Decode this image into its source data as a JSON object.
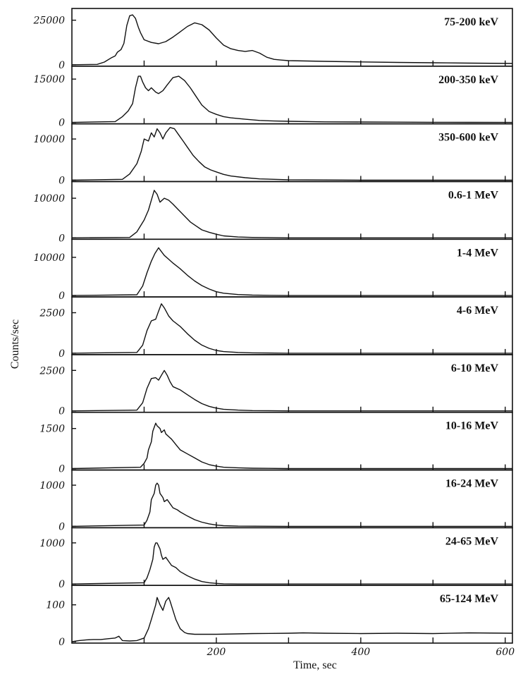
{
  "chart_data": {
    "type": "line",
    "xlabel": "Time, sec",
    "ylabel": "Counts/sec",
    "xlim": [
      0,
      610
    ],
    "x_tick_labels": [
      "200",
      "400",
      "600"
    ],
    "x_ticks": [
      100,
      200,
      300,
      400,
      500,
      600
    ],
    "panels": [
      {
        "label": "75-200 keV",
        "ytick_labels": [
          "25000",
          "0"
        ],
        "yticks": [
          25000,
          0
        ],
        "ylim": [
          0,
          30000
        ],
        "x": [
          0,
          35,
          45,
          55,
          60,
          63,
          68,
          72,
          76,
          80,
          84,
          88,
          92,
          95,
          100,
          110,
          120,
          130,
          140,
          150,
          160,
          170,
          180,
          190,
          200,
          210,
          220,
          230,
          240,
          250,
          260,
          270,
          280,
          290,
          300,
          350,
          400,
          450,
          500,
          550,
          610
        ],
        "y": [
          0,
          200,
          1500,
          4000,
          5000,
          7000,
          8500,
          12000,
          22000,
          27500,
          28000,
          26000,
          21000,
          18000,
          14000,
          12500,
          11800,
          13000,
          15500,
          18500,
          21500,
          23500,
          22500,
          19500,
          15000,
          11000,
          9000,
          8000,
          7500,
          8000,
          6500,
          4200,
          3000,
          2600,
          2300,
          1900,
          1600,
          1300,
          1100,
          900,
          700
        ]
      },
      {
        "label": "200-350 keV",
        "ytick_labels": [
          "15000",
          "0"
        ],
        "yticks": [
          15000,
          0
        ],
        "ylim": [
          0,
          18500
        ],
        "x": [
          0,
          60,
          70,
          78,
          84,
          88,
          92,
          95,
          98,
          102,
          106,
          110,
          116,
          120,
          126,
          132,
          140,
          148,
          156,
          164,
          172,
          180,
          190,
          200,
          210,
          220,
          240,
          260,
          280,
          300,
          350,
          400,
          450,
          500,
          550,
          610
        ],
        "y": [
          0,
          300,
          2000,
          4000,
          6500,
          12000,
          16000,
          16000,
          14000,
          12000,
          11000,
          12000,
          10500,
          10000,
          11000,
          13000,
          15500,
          16000,
          14500,
          12000,
          9000,
          6000,
          3800,
          2800,
          2000,
          1600,
          1100,
          700,
          500,
          400,
          200,
          150,
          100,
          60,
          30,
          0
        ]
      },
      {
        "label": "350-600 keV",
        "ytick_labels": [
          "10000",
          "0"
        ],
        "yticks": [
          10000,
          0
        ],
        "ylim": [
          0,
          13000
        ],
        "x": [
          0,
          70,
          80,
          90,
          96,
          100,
          106,
          110,
          114,
          118,
          122,
          126,
          130,
          136,
          142,
          148,
          154,
          160,
          168,
          176,
          184,
          192,
          200,
          210,
          220,
          240,
          260,
          280,
          300,
          350,
          400,
          450,
          500,
          610
        ],
        "y": [
          0,
          200,
          1500,
          4000,
          7000,
          10000,
          9500,
          11500,
          10500,
          12500,
          11500,
          10000,
          11500,
          12800,
          12500,
          11000,
          9500,
          8000,
          6000,
          4500,
          3200,
          2500,
          2000,
          1400,
          1000,
          600,
          300,
          200,
          100,
          50,
          0,
          0,
          0,
          0
        ]
      },
      {
        "label": "0.6-1 MeV",
        "ytick_labels": [
          "10000",
          "0"
        ],
        "yticks": [
          10000,
          0
        ],
        "ylim": [
          0,
          13500
        ],
        "x": [
          0,
          80,
          90,
          100,
          106,
          110,
          114,
          118,
          122,
          128,
          134,
          140,
          148,
          156,
          164,
          172,
          180,
          190,
          200,
          210,
          230,
          250,
          300,
          350,
          400,
          500,
          610
        ],
        "y": [
          0,
          100,
          1500,
          4500,
          7000,
          9500,
          12000,
          11000,
          9000,
          10000,
          9500,
          8500,
          7000,
          5500,
          4000,
          3000,
          2000,
          1400,
          900,
          500,
          200,
          100,
          0,
          0,
          0,
          0,
          0
        ]
      },
      {
        "label": "1-4 MeV",
        "ytick_labels": [
          "10000",
          "0"
        ],
        "yticks": [
          10000,
          0
        ],
        "ylim": [
          0,
          14000
        ],
        "x": [
          0,
          90,
          98,
          104,
          110,
          115,
          120,
          124,
          128,
          134,
          140,
          150,
          160,
          170,
          180,
          190,
          200,
          210,
          230,
          250,
          300,
          400,
          500,
          610
        ],
        "y": [
          0,
          200,
          2500,
          6000,
          9000,
          11000,
          12500,
          11500,
          10500,
          9500,
          8500,
          7000,
          5300,
          3800,
          2600,
          1700,
          1000,
          600,
          250,
          100,
          0,
          0,
          0,
          0
        ]
      },
      {
        "label": "4-6 MeV",
        "ytick_labels": [
          "2500",
          "0"
        ],
        "yticks": [
          2500,
          0
        ],
        "ylim": [
          0,
          3300
        ],
        "x": [
          0,
          90,
          98,
          104,
          110,
          116,
          120,
          124,
          128,
          134,
          140,
          150,
          160,
          170,
          180,
          190,
          200,
          210,
          230,
          250,
          300,
          400,
          500,
          610
        ],
        "y": [
          0,
          50,
          500,
          1400,
          2000,
          2100,
          2600,
          3050,
          2800,
          2300,
          2000,
          1650,
          1200,
          800,
          500,
          300,
          170,
          100,
          50,
          20,
          0,
          0,
          0,
          0
        ]
      },
      {
        "label": "6-10 MeV",
        "ytick_labels": [
          "2500",
          "0"
        ],
        "yticks": [
          2500,
          0
        ],
        "ylim": [
          0,
          3300
        ],
        "x": [
          0,
          90,
          98,
          104,
          110,
          116,
          120,
          124,
          128,
          132,
          136,
          140,
          150,
          160,
          170,
          180,
          190,
          200,
          210,
          230,
          250,
          300,
          400,
          500,
          610
        ],
        "y": [
          0,
          50,
          500,
          1400,
          2000,
          2050,
          1900,
          2200,
          2500,
          2200,
          1800,
          1500,
          1300,
          1000,
          700,
          450,
          280,
          170,
          100,
          50,
          20,
          0,
          0,
          0,
          0
        ]
      },
      {
        "label": "10-16 MeV",
        "ytick_labels": [
          "1500",
          "0"
        ],
        "yticks": [
          1500,
          0
        ],
        "ylim": [
          0,
          2000
        ],
        "x": [
          0,
          95,
          100,
          104,
          106,
          110,
          112,
          116,
          118,
          122,
          124,
          128,
          130,
          134,
          138,
          144,
          150,
          160,
          170,
          180,
          190,
          200,
          210,
          230,
          250,
          300,
          400,
          500,
          610
        ],
        "y": [
          0,
          50,
          200,
          400,
          700,
          1000,
          1400,
          1700,
          1600,
          1500,
          1350,
          1450,
          1300,
          1200,
          1100,
          900,
          700,
          550,
          400,
          250,
          150,
          90,
          50,
          30,
          15,
          0,
          0,
          0,
          0
        ]
      },
      {
        "label": "16-24 MeV",
        "ytick_labels": [
          "1000",
          "0"
        ],
        "yticks": [
          1000,
          0
        ],
        "ylim": [
          0,
          1300
        ],
        "x": [
          0,
          100,
          104,
          108,
          110,
          114,
          116,
          118,
          120,
          122,
          126,
          128,
          132,
          136,
          140,
          146,
          150,
          160,
          170,
          180,
          190,
          200,
          210,
          230,
          300,
          400,
          500,
          610
        ],
        "y": [
          0,
          30,
          150,
          350,
          650,
          800,
          1000,
          1050,
          1000,
          800,
          700,
          600,
          650,
          550,
          450,
          400,
          350,
          250,
          160,
          100,
          60,
          30,
          15,
          5,
          0,
          0,
          0,
          0
        ]
      },
      {
        "label": "24-65 MeV",
        "ytick_labels": [
          "1000",
          "0"
        ],
        "yticks": [
          1000,
          0
        ],
        "ylim": [
          0,
          1300
        ],
        "x": [
          0,
          100,
          104,
          108,
          112,
          114,
          116,
          118,
          122,
          124,
          126,
          130,
          134,
          138,
          144,
          150,
          160,
          170,
          180,
          190,
          200,
          210,
          230,
          300,
          400,
          500,
          610
        ],
        "y": [
          0,
          30,
          150,
          350,
          600,
          900,
          1000,
          1000,
          850,
          700,
          600,
          650,
          550,
          450,
          400,
          300,
          200,
          120,
          60,
          30,
          15,
          5,
          0,
          0,
          0,
          0,
          0
        ]
      },
      {
        "label": "65-124 MeV",
        "ytick_labels": [
          "100",
          "0"
        ],
        "yticks": [
          100,
          0
        ],
        "ylim": [
          0,
          145
        ],
        "x": [
          0,
          10,
          20,
          30,
          40,
          50,
          60,
          65,
          70,
          80,
          90,
          100,
          106,
          110,
          116,
          118,
          122,
          126,
          130,
          134,
          136,
          140,
          144,
          150,
          156,
          160,
          170,
          180,
          190,
          200,
          250,
          300,
          320,
          350,
          400,
          450,
          500,
          550,
          610
        ],
        "y": [
          0,
          3,
          5,
          6,
          6,
          8,
          10,
          15,
          3,
          2,
          3,
          10,
          35,
          60,
          100,
          120,
          100,
          85,
          110,
          120,
          110,
          85,
          60,
          35,
          25,
          22,
          20,
          20,
          20,
          20,
          22,
          23,
          24,
          23,
          22,
          23,
          22,
          24,
          23
        ]
      }
    ]
  }
}
